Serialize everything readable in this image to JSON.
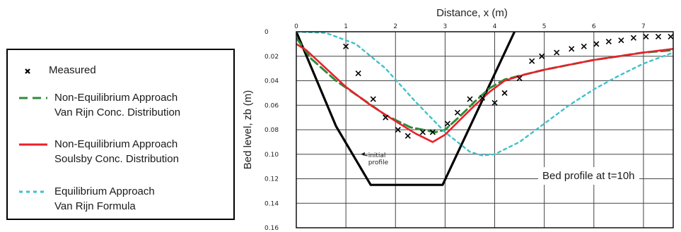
{
  "legend": {
    "items": [
      {
        "line1": "Measured",
        "line2": "",
        "symbol": "cross",
        "color": "#000000"
      },
      {
        "line1": "Non-Equilibrium Approach",
        "line2": "Van Rijn Conc. Distribution",
        "symbol": "long-dash",
        "color": "#2e8b3a"
      },
      {
        "line1": "Non-Equilibrium Approach",
        "line2": "Soulsby Conc. Distribution",
        "symbol": "solid",
        "color": "#e8202a"
      },
      {
        "line1": "Equilibrium Approach",
        "line2": "Van Rijn Formula",
        "symbol": "short-dash",
        "color": "#3ec1c8"
      }
    ]
  },
  "chart_data": {
    "type": "line",
    "title": "",
    "xlabel": "Distance, x (m)",
    "ylabel": "Bed level, zb (m)",
    "x_axis_position": "top",
    "y_inverted": true,
    "xlim": [
      0,
      7.6
    ],
    "ylim": [
      0,
      0.16
    ],
    "grid": true,
    "legend_placement": "left, outside plot",
    "x_ticks": [
      {
        "value": 0,
        "label": "0"
      },
      {
        "value": 1,
        "label": "1"
      },
      {
        "value": 2,
        "label": "2"
      },
      {
        "value": 3,
        "label": "3"
      },
      {
        "value": 4,
        "label": "4"
      },
      {
        "value": 5,
        "label": "5"
      },
      {
        "value": 6,
        "label": "6"
      },
      {
        "value": 7,
        "label": "7"
      }
    ],
    "y_ticks": [
      {
        "value": 0,
        "label": "0"
      },
      {
        "value": 0.02,
        "label": "0.02"
      },
      {
        "value": 0.04,
        "label": "0.04"
      },
      {
        "value": 0.06,
        "label": "0.06"
      },
      {
        "value": 0.08,
        "label": "0.08"
      },
      {
        "value": 0.1,
        "label": "0.10"
      },
      {
        "value": 0.12,
        "label": "0.12"
      },
      {
        "value": 0.14,
        "label": "0.14"
      },
      {
        "value": 0.16,
        "label": "0.16"
      }
    ],
    "series": [
      {
        "name": "initial profile",
        "style": "solid-thick",
        "color": "#000000",
        "points": [
          [
            0,
            0
          ],
          [
            0.8,
            0.077
          ],
          [
            1.5,
            0.125
          ],
          [
            2.95,
            0.125
          ],
          [
            4.4,
            0
          ]
        ]
      },
      {
        "name": "Measured",
        "style": "markers",
        "color": "#000000",
        "points": [
          [
            1.0,
            0.012
          ],
          [
            1.25,
            0.034
          ],
          [
            1.55,
            0.055
          ],
          [
            1.8,
            0.07
          ],
          [
            2.05,
            0.08
          ],
          [
            2.25,
            0.085
          ],
          [
            2.55,
            0.082
          ],
          [
            2.75,
            0.082
          ],
          [
            3.05,
            0.075
          ],
          [
            3.25,
            0.066
          ],
          [
            3.5,
            0.055
          ],
          [
            3.75,
            0.054
          ],
          [
            4.0,
            0.058
          ],
          [
            4.2,
            0.05
          ],
          [
            4.5,
            0.038
          ],
          [
            4.75,
            0.024
          ],
          [
            4.95,
            0.02
          ],
          [
            5.25,
            0.017
          ],
          [
            5.55,
            0.014
          ],
          [
            5.8,
            0.012
          ],
          [
            6.05,
            0.01
          ],
          [
            6.3,
            0.008
          ],
          [
            6.55,
            0.007
          ],
          [
            6.8,
            0.005
          ],
          [
            7.05,
            0.004
          ],
          [
            7.3,
            0.004
          ],
          [
            7.55,
            0.004
          ]
        ]
      },
      {
        "name": "Non-Equilibrium Approach Van Rijn Conc. Distribution",
        "style": "long-dash",
        "color": "#2e8b3a",
        "points": [
          [
            0,
            0.005
          ],
          [
            0.3,
            0.022
          ],
          [
            0.8,
            0.04
          ],
          [
            1.3,
            0.054
          ],
          [
            1.8,
            0.068
          ],
          [
            2.3,
            0.078
          ],
          [
            2.8,
            0.082
          ],
          [
            3.0,
            0.08
          ],
          [
            3.3,
            0.069
          ],
          [
            3.6,
            0.057
          ],
          [
            3.9,
            0.046
          ],
          [
            4.2,
            0.039
          ],
          [
            4.5,
            0.036
          ],
          [
            5.0,
            0.031
          ],
          [
            5.5,
            0.027
          ],
          [
            6.0,
            0.023
          ],
          [
            6.5,
            0.02
          ],
          [
            7.0,
            0.017
          ],
          [
            7.6,
            0.015
          ]
        ]
      },
      {
        "name": "Non-Equilibrium Approach Soulsby Conc. Distribution",
        "style": "solid",
        "color": "#e8202a",
        "points": [
          [
            0,
            0.01
          ],
          [
            0.2,
            0.015
          ],
          [
            0.6,
            0.03
          ],
          [
            1.0,
            0.045
          ],
          [
            1.5,
            0.06
          ],
          [
            2.0,
            0.073
          ],
          [
            2.4,
            0.083
          ],
          [
            2.75,
            0.09
          ],
          [
            3.0,
            0.084
          ],
          [
            3.3,
            0.072
          ],
          [
            3.6,
            0.06
          ],
          [
            3.9,
            0.049
          ],
          [
            4.2,
            0.04
          ],
          [
            4.6,
            0.035
          ],
          [
            5.0,
            0.031
          ],
          [
            5.5,
            0.027
          ],
          [
            6.0,
            0.023
          ],
          [
            6.5,
            0.02
          ],
          [
            7.0,
            0.017
          ],
          [
            7.6,
            0.014
          ]
        ]
      },
      {
        "name": "Equilibrium Approach Van Rijn Formula",
        "style": "short-dash",
        "color": "#3ec1c8",
        "points": [
          [
            0,
            0
          ],
          [
            0.6,
            0.001
          ],
          [
            1.2,
            0.01
          ],
          [
            1.8,
            0.03
          ],
          [
            2.4,
            0.057
          ],
          [
            3.0,
            0.082
          ],
          [
            3.5,
            0.098
          ],
          [
            3.75,
            0.101
          ],
          [
            4.0,
            0.1
          ],
          [
            4.5,
            0.09
          ],
          [
            5.0,
            0.075
          ],
          [
            5.5,
            0.06
          ],
          [
            6.0,
            0.047
          ],
          [
            6.5,
            0.036
          ],
          [
            7.0,
            0.026
          ],
          [
            7.6,
            0.017
          ]
        ]
      }
    ],
    "annotations": [
      {
        "text_lines": [
          "initial",
          "profile"
        ],
        "x": 1.45,
        "y": 0.103,
        "arrow_to": [
          1.3,
          0.1
        ]
      }
    ],
    "inset_label": "Bed profile at t=10h"
  }
}
